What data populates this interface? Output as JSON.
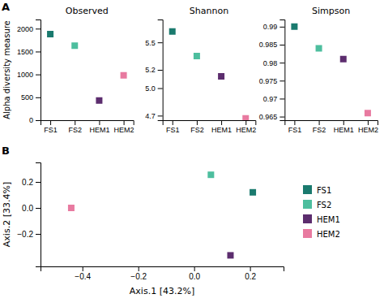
{
  "chart_data": [
    {
      "type": "scatter",
      "title": "Observed",
      "categories": [
        "FS1",
        "FS2",
        "HEM1",
        "HEM2"
      ],
      "values": [
        1880,
        1630,
        430,
        980
      ],
      "colors": [
        "#1a7a6e",
        "#4dbe9e",
        "#5c2d6e",
        "#e87aa0"
      ],
      "marker": "square",
      "ylabel": "Alpha diversity measure",
      "ylim": [
        0,
        2200
      ],
      "yticks": [
        0,
        500,
        1000,
        1500,
        2000
      ],
      "annotations": [
        "A"
      ]
    },
    {
      "type": "scatter",
      "title": "Shannon",
      "categories": [
        "FS1",
        "FS2",
        "HEM1",
        "HEM2"
      ],
      "values": [
        5.62,
        5.35,
        5.13,
        4.67
      ],
      "colors": [
        "#1a7a6e",
        "#4dbe9e",
        "#5c2d6e",
        "#e87aa0"
      ],
      "marker": "square",
      "ylim": [
        4.65,
        5.75
      ],
      "yticks": [
        4.7,
        {
          "value": 5.0,
          "label": "5.0"
        },
        5.2,
        5.5
      ]
    },
    {
      "type": "scatter",
      "title": "Simpson",
      "categories": [
        "FS1",
        "FS2",
        "HEM1",
        "HEM2"
      ],
      "values": [
        0.99,
        0.984,
        0.981,
        0.966
      ],
      "colors": [
        "#1a7a6e",
        "#4dbe9e",
        "#5c2d6e",
        "#e87aa0"
      ],
      "marker": "square",
      "ylim": [
        0.964,
        0.992
      ],
      "yticks": [
        0.965,
        0.97,
        0.975,
        0.98,
        0.985,
        0.99
      ]
    },
    {
      "type": "scatter",
      "xlabel": "Axis.1 [43.2%]",
      "ylabel": "Axis.2 [33.4%]",
      "series": [
        {
          "name": "FS1",
          "color": "#1a7a6e",
          "x": [
            0.21
          ],
          "values": [
            0.12
          ]
        },
        {
          "name": "FS2",
          "color": "#4dbe9e",
          "x": [
            0.06
          ],
          "values": [
            0.255
          ]
        },
        {
          "name": "HEM1",
          "color": "#5c2d6e",
          "x": [
            0.13
          ],
          "values": [
            -0.365
          ]
        },
        {
          "name": "HEM2",
          "color": "#e87aa0",
          "x": [
            -0.44
          ],
          "values": [
            0.0
          ]
        }
      ],
      "marker": "square",
      "xlim": [
        -0.55,
        0.32
      ],
      "ylim": [
        -0.45,
        0.35
      ],
      "xticks": [
        {
          "value": -0.4,
          "label": "−0.4"
        },
        {
          "value": -0.2,
          "label": "−0.2"
        },
        {
          "value": 0.0,
          "label": "0.0"
        },
        0.2
      ],
      "yticks": [
        {
          "value": -0.2,
          "label": "−0.2"
        },
        {
          "value": 0.0,
          "label": "0.0"
        },
        0.2
      ],
      "legend": "right",
      "annotations": [
        "B"
      ]
    }
  ]
}
